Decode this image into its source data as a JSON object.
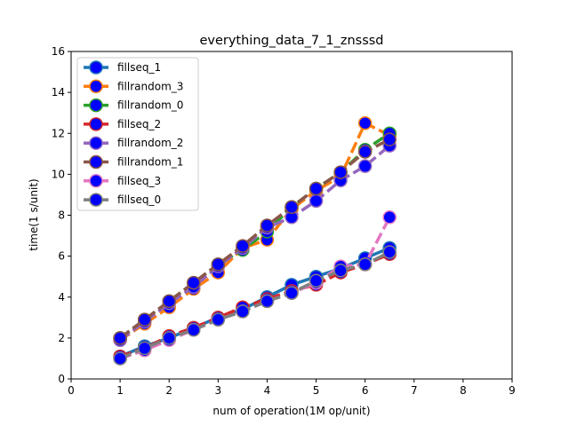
{
  "chart_data": {
    "type": "line",
    "title": "everything_data_7_1_znsssd",
    "xlabel": "num of operation(1M op/unit)",
    "ylabel": "time(1 s/unit)",
    "xlim": [
      0,
      9
    ],
    "ylim": [
      0,
      16
    ],
    "xticks": [
      0,
      1,
      2,
      3,
      4,
      5,
      6,
      7,
      8,
      9
    ],
    "yticks": [
      0,
      2,
      4,
      6,
      8,
      10,
      12,
      14,
      16
    ],
    "grid": false,
    "legend_position": "top-left",
    "marker_fill": "#0000ff",
    "series": [
      {
        "name": "fillseq_1",
        "color": "#1f77b4",
        "linestyle": "solid",
        "x": [
          1,
          1.5,
          2,
          2.5,
          3,
          3.5,
          4,
          4.5,
          5,
          5.5,
          6,
          6.5
        ],
        "y": [
          1.1,
          1.6,
          2.0,
          2.5,
          3.0,
          3.4,
          4.0,
          4.6,
          5.0,
          5.4,
          5.9,
          6.4
        ]
      },
      {
        "name": "fillrandom_3",
        "color": "#ff7f0e",
        "linestyle": "dashed",
        "x": [
          1,
          1.5,
          2,
          2.5,
          3,
          3.5,
          4,
          4.5,
          5,
          5.5,
          6,
          6.5
        ],
        "y": [
          1.9,
          2.7,
          3.5,
          4.4,
          5.2,
          6.4,
          6.8,
          8.3,
          9.2,
          9.9,
          12.5,
          11.9
        ]
      },
      {
        "name": "fillrandom_0",
        "color": "#2ca02c",
        "linestyle": "dashed",
        "x": [
          1,
          1.5,
          2,
          2.5,
          3,
          3.5,
          4,
          4.5,
          5,
          5.5,
          6,
          6.5
        ],
        "y": [
          2.0,
          2.9,
          3.8,
          4.7,
          5.6,
          6.3,
          7.2,
          8.4,
          9.3,
          10.1,
          11.2,
          12.0
        ]
      },
      {
        "name": "fillseq_2",
        "color": "#d62728",
        "linestyle": "dashed",
        "x": [
          1,
          1.5,
          2,
          2.5,
          3,
          3.5,
          4,
          4.5,
          5,
          5.5,
          6,
          6.5
        ],
        "y": [
          1.1,
          1.5,
          2.1,
          2.5,
          3.0,
          3.5,
          3.9,
          4.3,
          4.6,
          5.2,
          5.6,
          6.1
        ]
      },
      {
        "name": "fillrandom_2",
        "color": "#9467bd",
        "linestyle": "dashed",
        "x": [
          1,
          1.5,
          2,
          2.5,
          3,
          3.5,
          4,
          4.5,
          5,
          5.5,
          6,
          6.5
        ],
        "y": [
          1.9,
          2.8,
          3.7,
          4.5,
          5.5,
          6.4,
          7.4,
          7.9,
          8.7,
          9.7,
          10.4,
          11.4
        ]
      },
      {
        "name": "fillrandom_1",
        "color": "#8c564b",
        "linestyle": "dashed",
        "x": [
          1,
          1.5,
          2,
          2.5,
          3,
          3.5,
          4,
          4.5,
          5,
          5.5,
          6,
          6.5
        ],
        "y": [
          2.0,
          2.9,
          3.8,
          4.7,
          5.6,
          6.5,
          7.5,
          8.4,
          9.3,
          10.1,
          11.1,
          11.7
        ]
      },
      {
        "name": "fillseq_3",
        "color": "#e377c2",
        "linestyle": "dashed",
        "x": [
          1,
          1.5,
          2,
          2.5,
          3,
          3.5,
          4,
          4.5,
          5,
          5.5,
          6,
          6.5
        ],
        "y": [
          1.0,
          1.4,
          1.9,
          2.4,
          2.9,
          3.3,
          3.8,
          4.2,
          4.7,
          5.5,
          5.6,
          7.9
        ]
      },
      {
        "name": "fillseq_0",
        "color": "#7f7f7f",
        "linestyle": "dashed",
        "x": [
          1,
          1.5,
          2,
          2.5,
          3,
          3.5,
          4,
          4.5,
          5,
          5.5,
          6,
          6.5
        ],
        "y": [
          1.0,
          1.5,
          2.0,
          2.4,
          2.9,
          3.3,
          3.8,
          4.2,
          4.8,
          5.3,
          5.6,
          6.2
        ]
      }
    ]
  }
}
